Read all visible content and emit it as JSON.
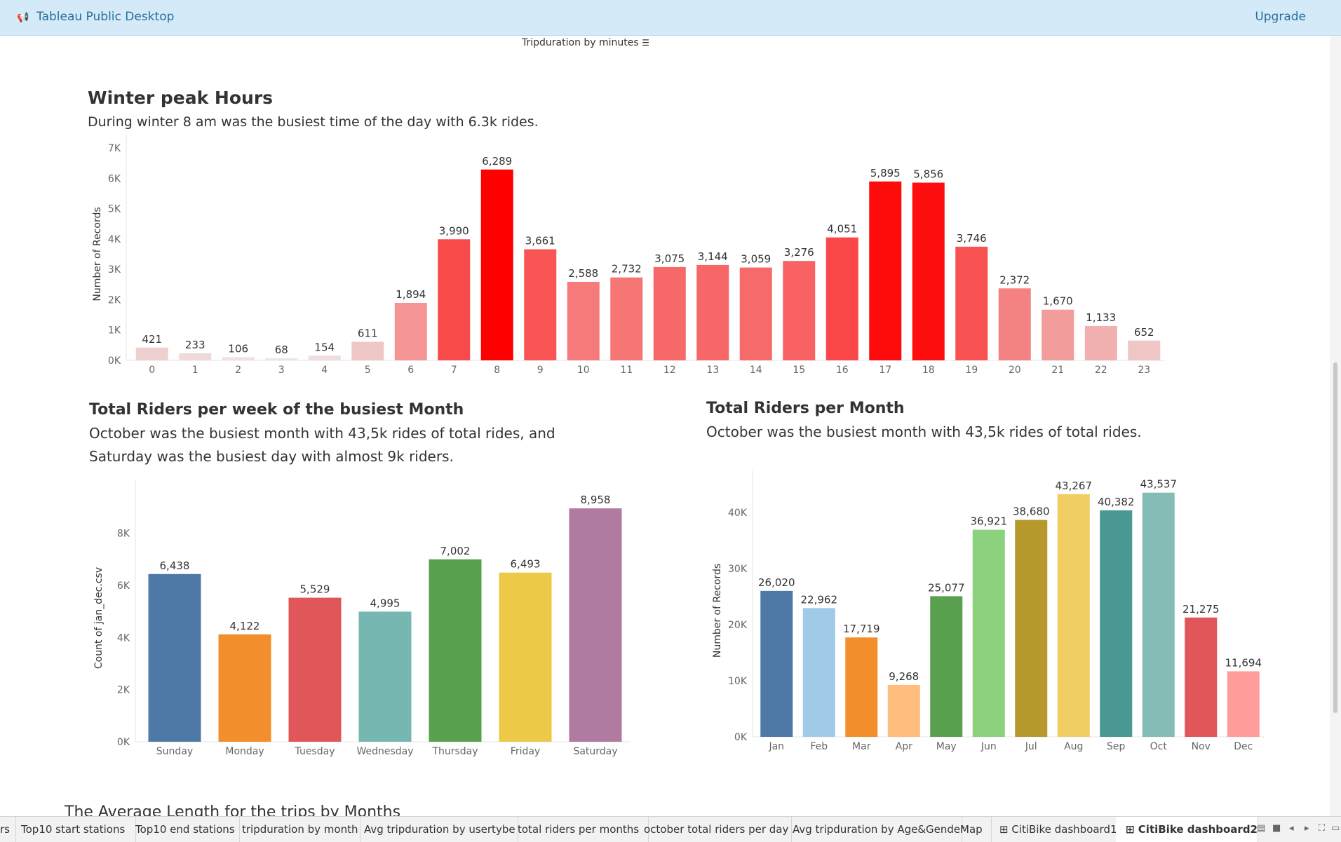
{
  "app": {
    "title": "Tableau Public Desktop",
    "upgrade_label": "Upgrade"
  },
  "sort_header": "Tripduration by minutes",
  "hourly": {
    "title": "Winter peak Hours",
    "subtitle": "During winter 8 am  was the busiest time of the day with 6.3k rides."
  },
  "weekly": {
    "title": "Total Riders per week of the busiest Month",
    "subtitle_line1": "October was the busiest month with 43,5k rides of total rides, and",
    "subtitle_line2": "Saturday was the busiest day with almost 9k riders."
  },
  "monthly": {
    "title": "Total Riders per Month",
    "subtitle": "October was the busiest month with 43,5k rides of total rides."
  },
  "next_section_title": "The Average Length for the trips by Months",
  "tabs": [
    {
      "label": "rs",
      "active": false
    },
    {
      "label": "Top10 start stations",
      "active": false
    },
    {
      "label": "Top10 end stations",
      "active": false
    },
    {
      "label": "tripduration by month",
      "active": false
    },
    {
      "label": "Avg tripduration by usertybe",
      "active": false
    },
    {
      "label": "total riders per months",
      "active": false
    },
    {
      "label": "october total riders per day",
      "active": false
    },
    {
      "label": "Avg tripduration by Age&Gender",
      "active": false
    },
    {
      "label": "Map",
      "active": false
    },
    {
      "label": "⊞ CitiBike dashboard1",
      "active": false
    },
    {
      "label": "⊞ CitiBike dashboard2",
      "active": true
    }
  ],
  "chart_data": [
    {
      "type": "bar",
      "ylabel": "Number of Records",
      "ylim": [
        0,
        7000
      ],
      "yticks": [
        "0K",
        "1K",
        "2K",
        "3K",
        "4K",
        "5K",
        "6K",
        "7K"
      ],
      "categories": [
        "0",
        "1",
        "2",
        "3",
        "4",
        "5",
        "6",
        "7",
        "8",
        "9",
        "10",
        "11",
        "12",
        "13",
        "14",
        "15",
        "16",
        "17",
        "18",
        "19",
        "20",
        "21",
        "22",
        "23"
      ],
      "values": [
        421,
        233,
        106,
        68,
        154,
        611,
        1894,
        3990,
        6289,
        3661,
        2588,
        2732,
        3075,
        3144,
        3059,
        3276,
        4051,
        5895,
        5856,
        3746,
        2372,
        1670,
        1133,
        652
      ],
      "labels": [
        "421",
        "233",
        "106",
        "68",
        "154",
        "611",
        "1,894",
        "3,990",
        "6,289",
        "3,661",
        "2,588",
        "2,732",
        "3,075",
        "3,144",
        "3,059",
        "3,276",
        "4,051",
        "5,895",
        "5,856",
        "3,746",
        "2,372",
        "1,670",
        "1,133",
        "652"
      ],
      "color_scale": [
        "#eee4e4",
        "#ff0000"
      ]
    },
    {
      "type": "bar",
      "ylabel": "Count of jan_dec.csv",
      "ylim": [
        0,
        9500
      ],
      "yticks": [
        "0K",
        "2K",
        "4K",
        "6K",
        "8K"
      ],
      "categories": [
        "Sunday",
        "Monday",
        "Tuesday",
        "Wednesday",
        "Thursday",
        "Friday",
        "Saturday"
      ],
      "values": [
        6438,
        4122,
        5529,
        4995,
        7002,
        6493,
        8958
      ],
      "labels": [
        "6,438",
        "4,122",
        "5,529",
        "4,995",
        "7,002",
        "6,493",
        "8,958"
      ],
      "colors": [
        "#4e79a7",
        "#f28e2b",
        "#e15759",
        "#76b7b2",
        "#59a14f",
        "#edc948",
        "#b07aa1"
      ]
    },
    {
      "type": "bar",
      "ylabel": "Number of Records",
      "ylim": [
        0,
        45000
      ],
      "yticks": [
        "0K",
        "10K",
        "20K",
        "30K",
        "40K"
      ],
      "categories": [
        "Jan",
        "Feb",
        "Mar",
        "Apr",
        "May",
        "Jun",
        "Jul",
        "Aug",
        "Sep",
        "Oct",
        "Nov",
        "Dec"
      ],
      "values": [
        26020,
        22962,
        17719,
        9268,
        25077,
        36921,
        38680,
        43267,
        40382,
        43537,
        21275,
        11694
      ],
      "labels": [
        "26,020",
        "22,962",
        "17,719",
        "9,268",
        "25,077",
        "36,921",
        "38,680",
        "43,267",
        "40,382",
        "43,537",
        "21,275",
        "11,694"
      ],
      "colors": [
        "#4e79a7",
        "#a0cbe8",
        "#f28e2b",
        "#ffbe7d",
        "#59a14f",
        "#8cd17d",
        "#b6992d",
        "#f1ce63",
        "#499894",
        "#86bcb6",
        "#e15759",
        "#ff9d9a"
      ]
    }
  ]
}
